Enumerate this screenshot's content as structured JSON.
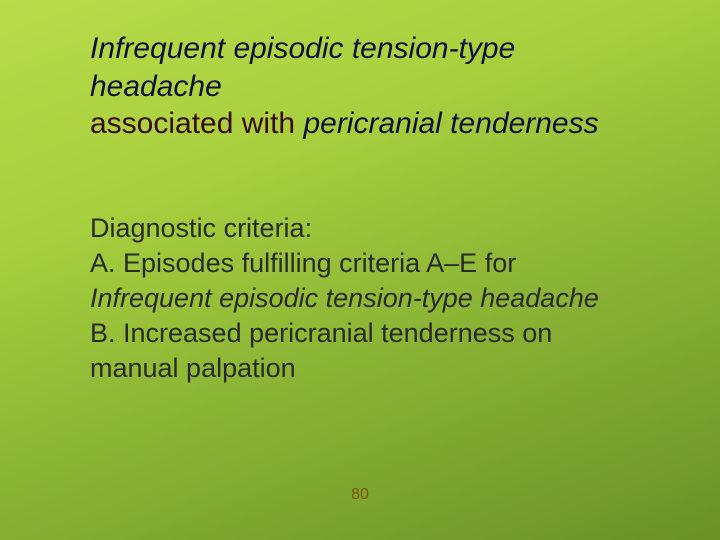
{
  "title": {
    "line1": "Infrequent episodic tension-type",
    "line2": "headache",
    "line3a": "associated with",
    "line3b": " pericranial tenderness"
  },
  "body": {
    "heading": "Diagnostic criteria:",
    "a_prefix": "A. Episodes fulfilling criteria A–E for",
    "a_sub": "Infrequent episodic tension-type headache",
    "b_line1": "B. Increased pericranial tenderness on",
    "b_line2": "manual palpation"
  },
  "page_number": "80",
  "style": {
    "slide_width": 720,
    "slide_height": 540,
    "background_gradient": [
      "#b8db4a",
      "#a8d03e",
      "#8fb936",
      "#7ba32e",
      "#6b9128"
    ],
    "title_color": "#0f0f3a",
    "title_fontsize": 30,
    "body_color": "#2a2a2a",
    "body_fontsize": 27,
    "pagenum_color": "#7a5a00",
    "pagenum_fontsize": 16,
    "font_family": "Arial"
  }
}
